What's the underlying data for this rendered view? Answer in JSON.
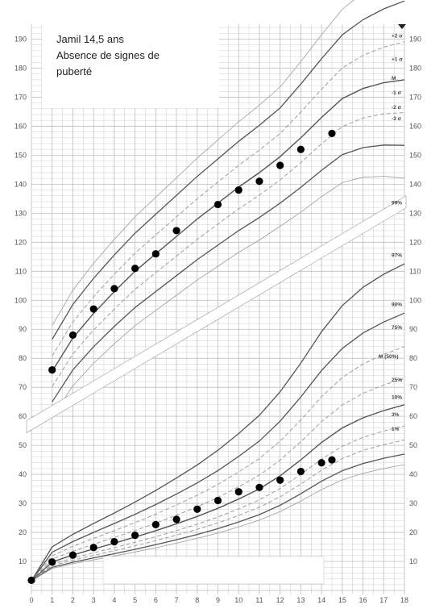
{
  "annotation": {
    "line1": "Jamil 14,5 ans",
    "line2": "Absence de signes de",
    "line3": "puberté"
  },
  "chart_data": {
    "type": "scatter",
    "title": "",
    "xlabel": "",
    "ylabel": "",
    "x_ticks": [
      0,
      1,
      2,
      3,
      4,
      5,
      6,
      7,
      8,
      9,
      10,
      11,
      12,
      13,
      14,
      15,
      16,
      17,
      18
    ],
    "y_ticks": [
      10,
      20,
      30,
      40,
      50,
      60,
      70,
      80,
      90,
      100,
      110,
      120,
      130,
      140,
      150,
      160,
      170,
      180,
      190
    ],
    "xlim": [
      0,
      18
    ],
    "ylim": [
      0,
      195
    ],
    "grid": true,
    "height_curve_labels": [
      "+2 σ",
      "+1 σ",
      "M",
      "-1 σ",
      "-2 σ",
      "-3 σ"
    ],
    "weight_curve_labels": [
      "99%",
      "97%",
      "90%",
      "75%",
      "M (50%)",
      "25%",
      "10%",
      "3%",
      "1%"
    ],
    "series": [
      {
        "name": "",
        "kind": "height",
        "points": [
          [
            1,
            76
          ],
          [
            2,
            88
          ],
          [
            3,
            97
          ],
          [
            4,
            104
          ],
          [
            5,
            111
          ],
          [
            6,
            116
          ],
          [
            7,
            124
          ],
          [
            9,
            133
          ],
          [
            10,
            138
          ],
          [
            11,
            141
          ],
          [
            12,
            146.5
          ],
          [
            13,
            152
          ],
          [
            14.5,
            157.5
          ]
        ]
      },
      {
        "name": "",
        "kind": "weight",
        "points": [
          [
            0,
            3.5
          ],
          [
            1,
            9.8
          ],
          [
            2,
            12.2
          ],
          [
            3,
            14.8
          ],
          [
            4,
            16.8
          ],
          [
            5,
            19
          ],
          [
            6,
            22.7
          ],
          [
            7,
            24.5
          ],
          [
            8,
            28
          ],
          [
            9,
            31
          ],
          [
            10,
            34
          ],
          [
            11,
            35.5
          ],
          [
            12,
            38
          ],
          [
            13,
            41
          ],
          [
            14,
            44
          ],
          [
            14.5,
            45
          ]
        ]
      }
    ]
  },
  "colors": {
    "grid": "#bdbdbd",
    "curve_dark": "#555555",
    "curve_light": "#9e9e9e",
    "points": "#000000"
  }
}
